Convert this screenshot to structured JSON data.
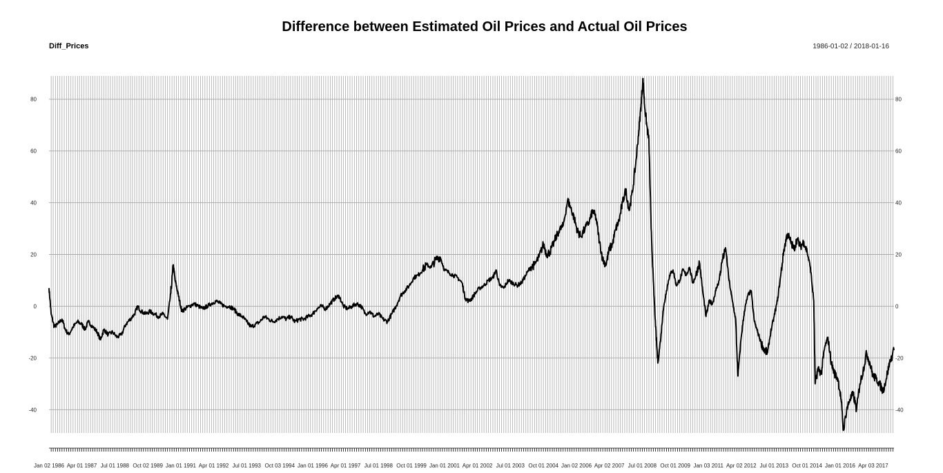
{
  "chart_data": {
    "type": "line",
    "title": "Difference between Estimated Oil Prices and Actual Oil Prices",
    "series_label": "Diff_Prices",
    "date_range": "1986-01-02 / 2018-01-16",
    "x_start": "1986-01-02",
    "x_end": "2018-01-16",
    "ylim": [
      -49,
      89
    ],
    "y_ticks": [
      80,
      60,
      40,
      20,
      0,
      -20,
      -40
    ],
    "y_tick_labels": [
      "80",
      "60",
      "40",
      "20",
      "0",
      "-20",
      "-40"
    ],
    "x_tick_labels": [
      {
        "label": "Jan 02 1986",
        "date": "1986-01-02"
      },
      {
        "label": "Apr 01 1987",
        "date": "1987-04-01"
      },
      {
        "label": "Jul 01 1988",
        "date": "1988-07-01"
      },
      {
        "label": "Oct 02 1989",
        "date": "1989-10-02"
      },
      {
        "label": "Jan 01 1991",
        "date": "1991-01-01"
      },
      {
        "label": "Apr 01 1992",
        "date": "1992-04-01"
      },
      {
        "label": "Jul 01 1993",
        "date": "1993-07-01"
      },
      {
        "label": "Oct 03 1994",
        "date": "1994-10-03"
      },
      {
        "label": "Jan 01 1996",
        "date": "1996-01-01"
      },
      {
        "label": "Apr 01 1997",
        "date": "1997-04-01"
      },
      {
        "label": "Jul 01 1998",
        "date": "1998-07-01"
      },
      {
        "label": "Oct 01 1999",
        "date": "1999-10-01"
      },
      {
        "label": "Jan 01 2001",
        "date": "2001-01-01"
      },
      {
        "label": "Apr 01 2002",
        "date": "2002-04-01"
      },
      {
        "label": "Jul 01 2003",
        "date": "2003-07-01"
      },
      {
        "label": "Oct 01 2004",
        "date": "2004-10-01"
      },
      {
        "label": "Jan 02 2006",
        "date": "2006-01-02"
      },
      {
        "label": "Apr 02 2007",
        "date": "2007-04-02"
      },
      {
        "label": "Jul 01 2008",
        "date": "2008-07-01"
      },
      {
        "label": "Oct 01 2009",
        "date": "2009-10-01"
      },
      {
        "label": "Jan 03 2011",
        "date": "2011-01-03"
      },
      {
        "label": "Apr 02 2012",
        "date": "2012-04-02"
      },
      {
        "label": "Jul 01 2013",
        "date": "2013-07-01"
      },
      {
        "label": "Oct 01 2014",
        "date": "2014-10-01"
      },
      {
        "label": "Jan 01 2016",
        "date": "2016-01-01"
      },
      {
        "label": "Apr 03 2017",
        "date": "2017-04-03"
      }
    ],
    "grid": true,
    "legend": "none",
    "line_color": "#000000",
    "grid_color": "#a8a8a8",
    "series": [
      {
        "points": [
          [
            "1986-01-02",
            7
          ],
          [
            "1986-02-01",
            -3
          ],
          [
            "1986-03-15",
            -8
          ],
          [
            "1986-05-01",
            -7
          ],
          [
            "1986-07-01",
            -5
          ],
          [
            "1986-08-15",
            -9
          ],
          [
            "1986-10-01",
            -11
          ],
          [
            "1986-12-01",
            -8
          ],
          [
            "1987-02-01",
            -6
          ],
          [
            "1987-04-01",
            -7
          ],
          [
            "1987-05-15",
            -9
          ],
          [
            "1987-07-01",
            -6
          ],
          [
            "1987-09-01",
            -8
          ],
          [
            "1987-11-01",
            -10
          ],
          [
            "1987-12-15",
            -13
          ],
          [
            "1988-02-01",
            -9
          ],
          [
            "1988-04-01",
            -11
          ],
          [
            "1988-06-01",
            -10
          ],
          [
            "1988-08-01",
            -12
          ],
          [
            "1988-10-01",
            -11
          ],
          [
            "1988-12-01",
            -7
          ],
          [
            "1989-02-01",
            -5
          ],
          [
            "1989-04-01",
            -3
          ],
          [
            "1989-05-15",
            0
          ],
          [
            "1989-07-01",
            -2
          ],
          [
            "1989-09-01",
            -3
          ],
          [
            "1989-11-01",
            -2
          ],
          [
            "1990-01-01",
            -3
          ],
          [
            "1990-03-01",
            -4
          ],
          [
            "1990-05-01",
            -3
          ],
          [
            "1990-07-01",
            -5
          ],
          [
            "1990-08-15",
            5
          ],
          [
            "1990-09-20",
            16
          ],
          [
            "1990-10-15",
            10
          ],
          [
            "1990-11-15",
            6
          ],
          [
            "1990-12-15",
            2
          ],
          [
            "1991-01-15",
            -2
          ],
          [
            "1991-03-01",
            -1
          ],
          [
            "1991-05-01",
            0
          ],
          [
            "1991-07-01",
            1
          ],
          [
            "1991-09-01",
            0
          ],
          [
            "1991-11-01",
            -1
          ],
          [
            "1992-01-01",
            0
          ],
          [
            "1992-03-01",
            1
          ],
          [
            "1992-05-01",
            2
          ],
          [
            "1992-07-01",
            1
          ],
          [
            "1992-09-01",
            0
          ],
          [
            "1992-11-01",
            0
          ],
          [
            "1993-01-01",
            -1
          ],
          [
            "1993-03-01",
            -3
          ],
          [
            "1993-05-01",
            -4
          ],
          [
            "1993-07-01",
            -6
          ],
          [
            "1993-09-01",
            -8
          ],
          [
            "1993-11-01",
            -7
          ],
          [
            "1994-01-01",
            -6
          ],
          [
            "1994-03-01",
            -4
          ],
          [
            "1994-05-01",
            -5
          ],
          [
            "1994-07-01",
            -6
          ],
          [
            "1994-09-01",
            -5
          ],
          [
            "1994-11-01",
            -4
          ],
          [
            "1995-01-01",
            -5
          ],
          [
            "1995-03-01",
            -4
          ],
          [
            "1995-05-01",
            -6
          ],
          [
            "1995-07-01",
            -5
          ],
          [
            "1995-09-01",
            -5
          ],
          [
            "1995-11-01",
            -4
          ],
          [
            "1996-01-01",
            -3
          ],
          [
            "1996-03-01",
            -1
          ],
          [
            "1996-05-01",
            0
          ],
          [
            "1996-07-01",
            -1
          ],
          [
            "1996-09-01",
            1
          ],
          [
            "1996-11-01",
            3
          ],
          [
            "1997-01-01",
            4
          ],
          [
            "1997-03-01",
            0
          ],
          [
            "1997-05-01",
            -1
          ],
          [
            "1997-07-01",
            0
          ],
          [
            "1997-09-01",
            1
          ],
          [
            "1997-11-01",
            0
          ],
          [
            "1998-01-01",
            -3
          ],
          [
            "1998-03-01",
            -2
          ],
          [
            "1998-05-01",
            -4
          ],
          [
            "1998-07-01",
            -3
          ],
          [
            "1998-09-01",
            -5
          ],
          [
            "1998-11-01",
            -6
          ],
          [
            "1999-01-01",
            -3
          ],
          [
            "1999-03-01",
            0
          ],
          [
            "1999-05-01",
            4
          ],
          [
            "1999-07-01",
            6
          ],
          [
            "1999-09-01",
            8
          ],
          [
            "1999-11-01",
            11
          ],
          [
            "2000-01-01",
            12
          ],
          [
            "2000-03-01",
            14
          ],
          [
            "2000-05-01",
            16
          ],
          [
            "2000-07-01",
            15
          ],
          [
            "2000-09-01",
            18
          ],
          [
            "2000-11-01",
            19
          ],
          [
            "2001-01-01",
            14
          ],
          [
            "2001-03-01",
            13
          ],
          [
            "2001-05-01",
            12
          ],
          [
            "2001-07-01",
            11
          ],
          [
            "2001-09-01",
            9
          ],
          [
            "2001-10-15",
            3
          ],
          [
            "2001-12-01",
            2
          ],
          [
            "2002-01-15",
            3
          ],
          [
            "2002-03-01",
            5
          ],
          [
            "2002-05-01",
            7
          ],
          [
            "2002-07-01",
            8
          ],
          [
            "2002-09-01",
            10
          ],
          [
            "2002-11-01",
            11
          ],
          [
            "2002-12-15",
            14
          ],
          [
            "2003-02-01",
            8
          ],
          [
            "2003-04-01",
            7
          ],
          [
            "2003-06-01",
            10
          ],
          [
            "2003-08-01",
            9
          ],
          [
            "2003-10-01",
            8
          ],
          [
            "2003-12-01",
            9
          ],
          [
            "2004-02-01",
            12
          ],
          [
            "2004-04-01",
            15
          ],
          [
            "2004-06-01",
            16
          ],
          [
            "2004-08-01",
            19
          ],
          [
            "2004-10-01",
            24
          ],
          [
            "2004-11-15",
            20
          ],
          [
            "2005-01-01",
            21
          ],
          [
            "2005-03-01",
            25
          ],
          [
            "2005-05-01",
            29
          ],
          [
            "2005-07-01",
            31
          ],
          [
            "2005-09-01",
            41
          ],
          [
            "2005-10-15",
            38
          ],
          [
            "2005-12-01",
            34
          ],
          [
            "2006-01-15",
            29
          ],
          [
            "2006-03-01",
            27
          ],
          [
            "2006-05-01",
            30
          ],
          [
            "2006-07-01",
            33
          ],
          [
            "2006-08-15",
            37
          ],
          [
            "2006-10-01",
            34
          ],
          [
            "2006-11-15",
            25
          ],
          [
            "2007-01-01",
            18
          ],
          [
            "2007-02-15",
            16
          ],
          [
            "2007-04-01",
            22
          ],
          [
            "2007-05-15",
            24
          ],
          [
            "2007-07-01",
            30
          ],
          [
            "2007-08-15",
            33
          ],
          [
            "2007-10-01",
            40
          ],
          [
            "2007-11-15",
            45
          ],
          [
            "2008-01-01",
            37
          ],
          [
            "2008-02-15",
            44
          ],
          [
            "2008-04-01",
            55
          ],
          [
            "2008-05-15",
            68
          ],
          [
            "2008-06-15",
            78
          ],
          [
            "2008-07-10",
            88
          ],
          [
            "2008-08-01",
            78
          ],
          [
            "2008-09-01",
            70
          ],
          [
            "2008-10-01",
            64
          ],
          [
            "2008-11-01",
            30
          ],
          [
            "2008-12-01",
            10
          ],
          [
            "2009-01-01",
            -8
          ],
          [
            "2009-02-01",
            -22
          ],
          [
            "2009-03-15",
            -12
          ],
          [
            "2009-04-15",
            -2
          ],
          [
            "2009-06-01",
            6
          ],
          [
            "2009-07-15",
            12
          ],
          [
            "2009-09-01",
            14
          ],
          [
            "2009-10-15",
            8
          ],
          [
            "2009-12-01",
            10
          ],
          [
            "2010-01-15",
            14
          ],
          [
            "2010-03-01",
            12
          ],
          [
            "2010-04-15",
            15
          ],
          [
            "2010-06-01",
            9
          ],
          [
            "2010-07-15",
            12
          ],
          [
            "2010-09-01",
            17
          ],
          [
            "2010-10-15",
            6
          ],
          [
            "2010-12-01",
            -4
          ],
          [
            "2011-01-15",
            2
          ],
          [
            "2011-03-01",
            1
          ],
          [
            "2011-04-15",
            6
          ],
          [
            "2011-06-01",
            10
          ],
          [
            "2011-07-15",
            18
          ],
          [
            "2011-09-01",
            22
          ],
          [
            "2011-10-15",
            10
          ],
          [
            "2011-12-01",
            2
          ],
          [
            "2012-01-15",
            -5
          ],
          [
            "2012-02-15",
            -27
          ],
          [
            "2012-04-01",
            -12
          ],
          [
            "2012-05-15",
            -2
          ],
          [
            "2012-07-01",
            4
          ],
          [
            "2012-08-15",
            6
          ],
          [
            "2012-10-01",
            -6
          ],
          [
            "2012-11-15",
            -10
          ],
          [
            "2013-01-01",
            -14
          ],
          [
            "2013-02-15",
            -17
          ],
          [
            "2013-04-01",
            -18
          ],
          [
            "2013-05-15",
            -10
          ],
          [
            "2013-07-01",
            -4
          ],
          [
            "2013-08-15",
            2
          ],
          [
            "2013-10-01",
            12
          ],
          [
            "2013-11-15",
            22
          ],
          [
            "2014-01-01",
            28
          ],
          [
            "2014-02-15",
            25
          ],
          [
            "2014-04-01",
            22
          ],
          [
            "2014-05-15",
            26
          ],
          [
            "2014-07-01",
            23
          ],
          [
            "2014-08-15",
            25
          ],
          [
            "2014-10-01",
            21
          ],
          [
            "2014-11-15",
            15
          ],
          [
            "2015-01-01",
            2
          ],
          [
            "2015-01-20",
            -30
          ],
          [
            "2015-03-01",
            -24
          ],
          [
            "2015-04-15",
            -26
          ],
          [
            "2015-06-01",
            -16
          ],
          [
            "2015-07-15",
            -12
          ],
          [
            "2015-09-01",
            -22
          ],
          [
            "2015-10-15",
            -26
          ],
          [
            "2015-12-01",
            -28
          ],
          [
            "2016-01-15",
            -36
          ],
          [
            "2016-02-15",
            -48
          ],
          [
            "2016-04-01",
            -40
          ],
          [
            "2016-05-15",
            -36
          ],
          [
            "2016-07-01",
            -34
          ],
          [
            "2016-08-15",
            -40
          ],
          [
            "2016-10-01",
            -30
          ],
          [
            "2016-11-15",
            -25
          ],
          [
            "2017-01-01",
            -18
          ],
          [
            "2017-02-15",
            -22
          ],
          [
            "2017-04-01",
            -27
          ],
          [
            "2017-05-15",
            -28
          ],
          [
            "2017-07-01",
            -30
          ],
          [
            "2017-08-15",
            -33
          ],
          [
            "2017-10-01",
            -28
          ],
          [
            "2017-11-15",
            -22
          ],
          [
            "2018-01-16",
            -17
          ]
        ]
      }
    ]
  }
}
